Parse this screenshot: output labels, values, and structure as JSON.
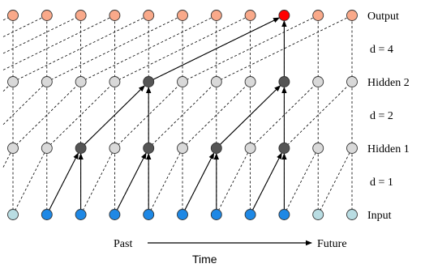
{
  "labels": {
    "output": "Output",
    "hidden2": "Hidden 2",
    "hidden1": "Hidden 1",
    "input": "Input",
    "d4": "d = 4",
    "d2": "d = 2",
    "d1": "d = 1",
    "past": "Past",
    "future": "Future",
    "time": "Time"
  },
  "dilations": {
    "h1": 1,
    "h2": 2,
    "out": 4
  },
  "layers": [
    {
      "id": "output",
      "nodes": [
        "#f9a98a",
        "#f9a98a",
        "#f9a98a",
        "#f9a98a",
        "#f9a98a",
        "#f9a98a",
        "#f9a98a",
        "#f9a98a",
        "#ff0000",
        "#f9a98a",
        "#f9a98a"
      ]
    },
    {
      "id": "hidden2",
      "nodes": [
        "#d9d9d9",
        "#d9d9d9",
        "#d9d9d9",
        "#d9d9d9",
        "#555555",
        "#d9d9d9",
        "#d9d9d9",
        "#d9d9d9",
        "#555555",
        "#d9d9d9",
        "#d9d9d9"
      ]
    },
    {
      "id": "hidden1",
      "nodes": [
        "#d9d9d9",
        "#d9d9d9",
        "#555555",
        "#d9d9d9",
        "#555555",
        "#d9d9d9",
        "#555555",
        "#d9d9d9",
        "#555555",
        "#d9d9d9",
        "#d9d9d9"
      ]
    },
    {
      "id": "input",
      "nodes": [
        "#b9dde3",
        "#1e88e5",
        "#1e88e5",
        "#1e88e5",
        "#1e88e5",
        "#1e88e5",
        "#1e88e5",
        "#1e88e5",
        "#1e88e5",
        "#b9dde3",
        "#b9dde3"
      ]
    }
  ],
  "active_edges": [
    {
      "from": [
        "input",
        1
      ],
      "to": [
        "hidden1",
        2
      ]
    },
    {
      "from": [
        "input",
        2
      ],
      "to": [
        "hidden1",
        2
      ]
    },
    {
      "from": [
        "input",
        3
      ],
      "to": [
        "hidden1",
        4
      ]
    },
    {
      "from": [
        "input",
        4
      ],
      "to": [
        "hidden1",
        4
      ]
    },
    {
      "from": [
        "input",
        5
      ],
      "to": [
        "hidden1",
        6
      ]
    },
    {
      "from": [
        "input",
        6
      ],
      "to": [
        "hidden1",
        6
      ]
    },
    {
      "from": [
        "input",
        7
      ],
      "to": [
        "hidden1",
        8
      ]
    },
    {
      "from": [
        "input",
        8
      ],
      "to": [
        "hidden1",
        8
      ]
    },
    {
      "from": [
        "hidden1",
        2
      ],
      "to": [
        "hidden2",
        4
      ]
    },
    {
      "from": [
        "hidden1",
        4
      ],
      "to": [
        "hidden2",
        4
      ]
    },
    {
      "from": [
        "hidden1",
        6
      ],
      "to": [
        "hidden2",
        8
      ]
    },
    {
      "from": [
        "hidden1",
        8
      ],
      "to": [
        "hidden2",
        8
      ]
    },
    {
      "from": [
        "hidden2",
        4
      ],
      "to": [
        "output",
        8
      ]
    },
    {
      "from": [
        "hidden2",
        8
      ],
      "to": [
        "output",
        8
      ]
    }
  ]
}
